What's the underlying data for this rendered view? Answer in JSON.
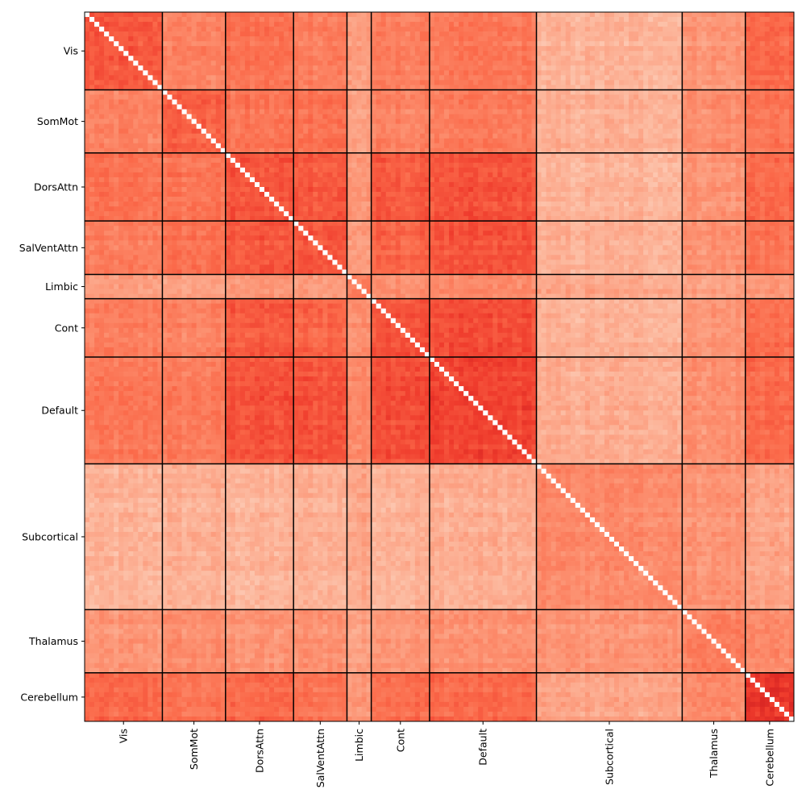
{
  "chart_data": {
    "type": "heatmap",
    "title": "",
    "xlabel": "",
    "ylabel": "",
    "n_regions": 146,
    "colormap": "Reds",
    "diagonal_color": "#ffffff",
    "boundary_color": "#000000",
    "networks": [
      {
        "name": "Vis",
        "start": 0,
        "end": 16
      },
      {
        "name": "SomMot",
        "start": 16,
        "end": 29
      },
      {
        "name": "DorsAttn",
        "start": 29,
        "end": 43
      },
      {
        "name": "SalVentAttn",
        "start": 43,
        "end": 54
      },
      {
        "name": "Limbic",
        "start": 54,
        "end": 59
      },
      {
        "name": "Cont",
        "start": 59,
        "end": 71
      },
      {
        "name": "Default",
        "start": 71,
        "end": 93
      },
      {
        "name": "Subcortical",
        "start": 93,
        "end": 123
      },
      {
        "name": "Thalamus",
        "start": 123,
        "end": 136
      },
      {
        "name": "Cerebellum",
        "start": 136,
        "end": 146
      }
    ],
    "block_mean_intensity": [
      [
        0.55,
        0.42,
        0.47,
        0.44,
        0.34,
        0.43,
        0.45,
        0.27,
        0.36,
        0.5
      ],
      [
        0.42,
        0.52,
        0.46,
        0.48,
        0.33,
        0.42,
        0.44,
        0.28,
        0.39,
        0.46
      ],
      [
        0.47,
        0.46,
        0.56,
        0.55,
        0.36,
        0.54,
        0.56,
        0.27,
        0.37,
        0.5
      ],
      [
        0.44,
        0.48,
        0.55,
        0.56,
        0.35,
        0.51,
        0.56,
        0.28,
        0.38,
        0.47
      ],
      [
        0.34,
        0.33,
        0.36,
        0.35,
        0.45,
        0.38,
        0.4,
        0.31,
        0.33,
        0.36
      ],
      [
        0.43,
        0.42,
        0.54,
        0.51,
        0.38,
        0.57,
        0.58,
        0.28,
        0.37,
        0.49
      ],
      [
        0.45,
        0.44,
        0.56,
        0.56,
        0.4,
        0.58,
        0.6,
        0.29,
        0.38,
        0.5
      ],
      [
        0.27,
        0.28,
        0.27,
        0.28,
        0.31,
        0.28,
        0.29,
        0.4,
        0.37,
        0.32
      ],
      [
        0.36,
        0.39,
        0.37,
        0.38,
        0.33,
        0.37,
        0.38,
        0.37,
        0.44,
        0.4
      ],
      [
        0.5,
        0.46,
        0.5,
        0.47,
        0.36,
        0.49,
        0.5,
        0.32,
        0.4,
        0.65
      ]
    ]
  }
}
